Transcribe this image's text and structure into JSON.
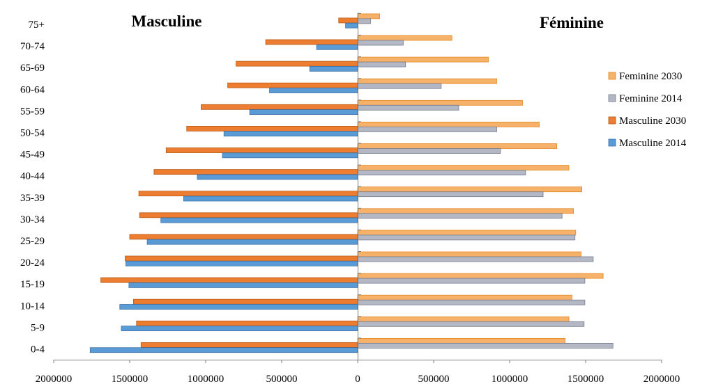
{
  "chart_data": {
    "type": "bar",
    "orientation": "horizontal",
    "layout": "population-pyramid",
    "titles": {
      "left": "Masculine",
      "right": "Féminine"
    },
    "categories": [
      "75+",
      "70-74",
      "65-69",
      "60-64",
      "55-59",
      "50-54",
      "45-49",
      "40-44",
      "35-39",
      "30-34",
      "25-29",
      "20-24",
      "15-19",
      "10-14",
      "5-9",
      "0-4"
    ],
    "series": [
      {
        "name": "Feminine 2030",
        "side": "right",
        "color": "#F6B26B",
        "stroke": "#E3871F",
        "values": [
          145000,
          620000,
          860000,
          915000,
          1085000,
          1195000,
          1310000,
          1390000,
          1475000,
          1420000,
          1435000,
          1470000,
          1615000,
          1410000,
          1390000,
          1365000
        ]
      },
      {
        "name": "Feminine 2014",
        "side": "right",
        "color": "#B4B8C5",
        "stroke": "#767C8C",
        "values": [
          85000,
          300000,
          315000,
          550000,
          665000,
          915000,
          940000,
          1105000,
          1220000,
          1345000,
          1430000,
          1550000,
          1495000,
          1495000,
          1490000,
          1680000
        ]
      },
      {
        "name": "Masculine 2030",
        "side": "left",
        "color": "#ED7D31",
        "stroke": "#B85710",
        "values": [
          125000,
          605000,
          800000,
          855000,
          1030000,
          1125000,
          1260000,
          1340000,
          1440000,
          1435000,
          1500000,
          1530000,
          1690000,
          1475000,
          1455000,
          1425000
        ]
      },
      {
        "name": "Masculine 2014",
        "side": "left",
        "color": "#5B9BD5",
        "stroke": "#3D72A8",
        "values": [
          80000,
          270000,
          315000,
          580000,
          710000,
          880000,
          890000,
          1055000,
          1145000,
          1295000,
          1385000,
          1525000,
          1505000,
          1565000,
          1555000,
          1760000
        ]
      }
    ],
    "x_tick_labels": [
      "2000000",
      "1500000",
      "1000000",
      "500000",
      "0",
      "500000",
      "1000000",
      "1500000",
      "2000000"
    ],
    "xlim": [
      -2000000,
      2000000
    ],
    "grid": false,
    "legend_position": "right"
  }
}
